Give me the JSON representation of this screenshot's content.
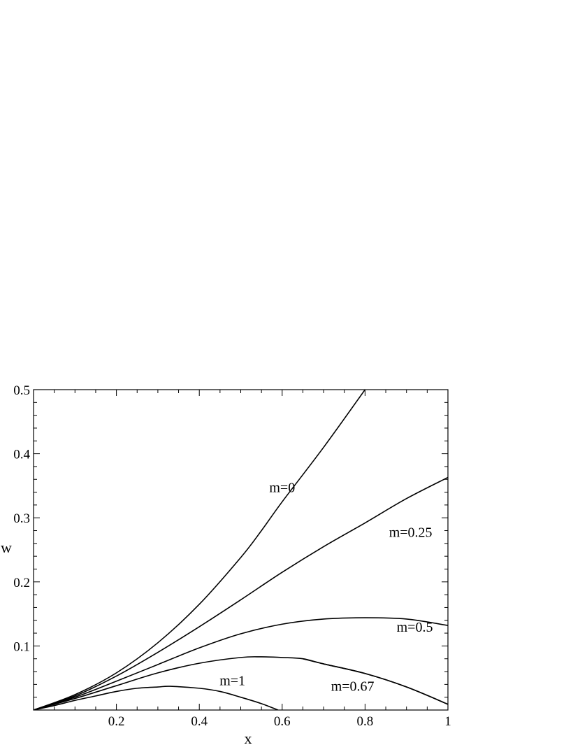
{
  "chart_data": {
    "type": "line",
    "title": "",
    "xlabel": "x",
    "ylabel": "w",
    "xlim": [
      0,
      1
    ],
    "ylim": [
      0,
      0.5
    ],
    "grid": false,
    "legend": "none",
    "x_ticks": [
      0.2,
      0.4,
      0.6,
      0.8,
      1
    ],
    "x_tick_labels": [
      "0.2",
      "0.4",
      "0.6",
      "0.8",
      "1"
    ],
    "y_ticks": [
      0.1,
      0.2,
      0.3,
      0.4,
      0.5
    ],
    "y_tick_labels": [
      "0.1",
      "0.2",
      "0.3",
      "0.4",
      "0.5"
    ],
    "series": [
      {
        "label": "m=0",
        "color": "#000000",
        "points": [
          [
            0,
            0
          ],
          [
            0.1,
            0.024
          ],
          [
            0.2,
            0.058
          ],
          [
            0.3,
            0.105
          ],
          [
            0.4,
            0.165
          ],
          [
            0.5,
            0.238
          ],
          [
            0.55,
            0.28
          ],
          [
            0.6,
            0.325
          ],
          [
            0.7,
            0.41
          ],
          [
            0.8,
            0.5
          ]
        ]
      },
      {
        "label": "m=0.25",
        "color": "#000000",
        "points": [
          [
            0,
            0
          ],
          [
            0.1,
            0.022
          ],
          [
            0.2,
            0.053
          ],
          [
            0.3,
            0.09
          ],
          [
            0.4,
            0.13
          ],
          [
            0.5,
            0.172
          ],
          [
            0.6,
            0.215
          ],
          [
            0.7,
            0.255
          ],
          [
            0.8,
            0.292
          ],
          [
            0.9,
            0.33
          ],
          [
            1.0,
            0.363
          ]
        ]
      },
      {
        "label": "m=0.5",
        "color": "#000000",
        "points": [
          [
            0,
            0
          ],
          [
            0.1,
            0.02
          ],
          [
            0.2,
            0.045
          ],
          [
            0.3,
            0.071
          ],
          [
            0.4,
            0.097
          ],
          [
            0.5,
            0.119
          ],
          [
            0.6,
            0.134
          ],
          [
            0.7,
            0.142
          ],
          [
            0.8,
            0.144
          ],
          [
            0.9,
            0.142
          ],
          [
            1.0,
            0.132
          ]
        ]
      },
      {
        "label": "m=0.67",
        "color": "#000000",
        "color_tail": "#6e6e6e",
        "points": [
          [
            0,
            0
          ],
          [
            0.1,
            0.018
          ],
          [
            0.2,
            0.038
          ],
          [
            0.3,
            0.058
          ],
          [
            0.4,
            0.073
          ],
          [
            0.5,
            0.082
          ],
          [
            0.55,
            0.083
          ],
          [
            0.6,
            0.082
          ],
          [
            0.65,
            0.08
          ],
          [
            0.7,
            0.072
          ],
          [
            0.8,
            0.057
          ],
          [
            0.9,
            0.036
          ],
          [
            1.0,
            0.009
          ]
        ]
      },
      {
        "label": "m=1",
        "color": "#000000",
        "points": [
          [
            0,
            0
          ],
          [
            0.05,
            0.007
          ],
          [
            0.1,
            0.015
          ],
          [
            0.15,
            0.022
          ],
          [
            0.2,
            0.029
          ],
          [
            0.25,
            0.034
          ],
          [
            0.3,
            0.036
          ],
          [
            0.33,
            0.037
          ],
          [
            0.4,
            0.034
          ],
          [
            0.45,
            0.029
          ],
          [
            0.5,
            0.02
          ],
          [
            0.55,
            0.01
          ],
          [
            0.59,
            0
          ]
        ]
      }
    ],
    "annotations": [
      {
        "text": "m=0",
        "x": 0.6,
        "y": 0.34
      },
      {
        "text": "m=0.25",
        "x": 0.91,
        "y": 0.27
      },
      {
        "text": "m=0.5",
        "x": 0.92,
        "y": 0.122
      },
      {
        "text": "m=0.67",
        "x": 0.77,
        "y": 0.03
      },
      {
        "text": "m=1",
        "x": 0.48,
        "y": 0.039
      }
    ]
  }
}
